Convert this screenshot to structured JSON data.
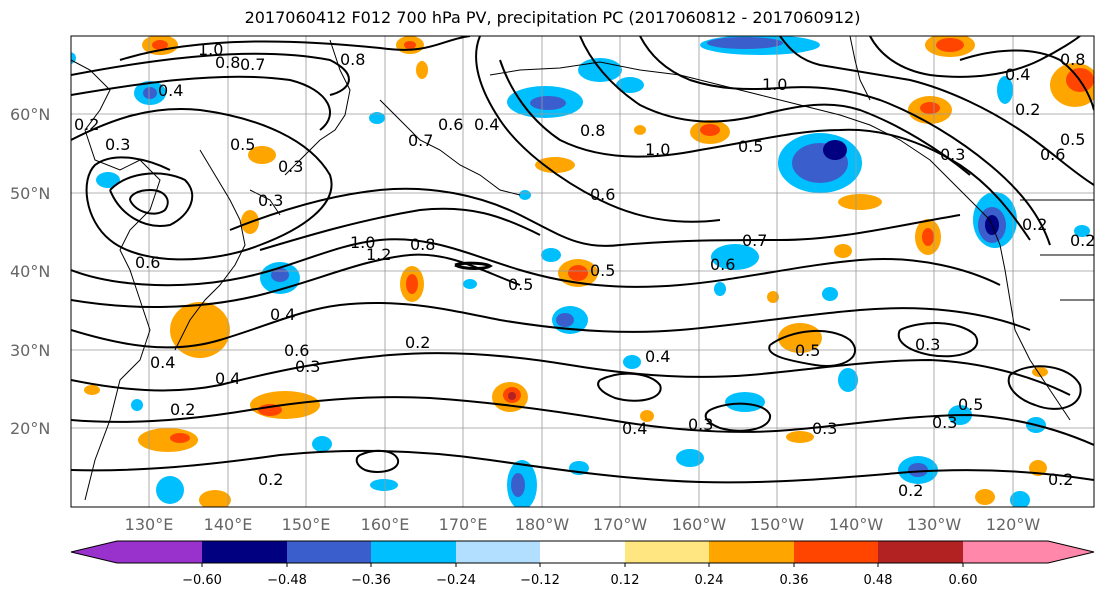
{
  "title": "2017060412 F012 700 hPa PV, precipitation PC (2017060812 - 2017060912)",
  "lat_labels": [
    "60°N",
    "50°N",
    "40°N",
    "30°N",
    "20°N"
  ],
  "lon_labels": [
    "130°E",
    "140°E",
    "150°E",
    "160°E",
    "170°E",
    "180°W",
    "170°W",
    "160°W",
    "150°W",
    "140°W",
    "130°W",
    "120°W"
  ],
  "colorbar": {
    "ticks": [
      "−0.60",
      "−0.48",
      "−0.36",
      "−0.24",
      "−0.12",
      "0.12",
      "0.24",
      "0.36",
      "0.48",
      "0.60"
    ],
    "colors": [
      "#9932cc",
      "#000080",
      "#3a5fcd",
      "#00bfff",
      "#b2dfff",
      "#ffffff",
      "#ffe680",
      "#ffa500",
      "#ff4500",
      "#b22222",
      "#ff88aa"
    ]
  },
  "contour_labels": [
    "1.0",
    "0.8",
    "0.7",
    "0.8",
    "0.4",
    "0.2",
    "0.3",
    "0.5",
    "0.3",
    "0.3",
    "0.7",
    "0.6",
    "0.4",
    "0.6",
    "1.0",
    "0.6",
    "1.2",
    "0.8",
    "0.7",
    "0.5",
    "0.5",
    "0.6",
    "0.4",
    "0.6",
    "0.2",
    "0.4",
    "0.3",
    "0.2",
    "0.4",
    "0.4",
    "0.2",
    "0.3",
    "0.4",
    "0.3",
    "0.5",
    "0.3",
    "0.2",
    "0.2",
    "0.3",
    "0.5",
    "1.0",
    "0.5",
    "0.8",
    "1.0",
    "0.3",
    "0.6",
    "0.2",
    "0.2",
    "0.5",
    "0.4",
    "0.2",
    "0.8"
  ]
}
